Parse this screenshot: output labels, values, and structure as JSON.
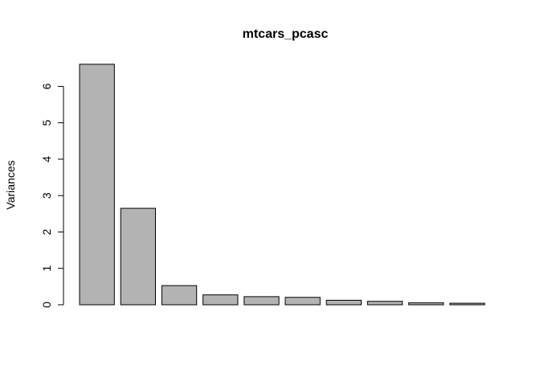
{
  "chart_data": {
    "type": "bar",
    "title": "mtcars_pcasc",
    "xlabel": "",
    "ylabel": "Variances",
    "ylim": [
      0,
      6.65
    ],
    "yticks": [
      0,
      1,
      2,
      3,
      4,
      5,
      6
    ],
    "ytick_labels": [
      "0",
      "1",
      "2",
      "3",
      "4",
      "5",
      "6"
    ],
    "values": [
      6.608,
      2.65,
      0.527,
      0.272,
      0.223,
      0.204,
      0.124,
      0.095,
      0.053,
      0.042
    ],
    "colors": {
      "bar_fill": "#b3b3b3",
      "bar_stroke": "#000000"
    },
    "grid": false,
    "legend": "none"
  }
}
